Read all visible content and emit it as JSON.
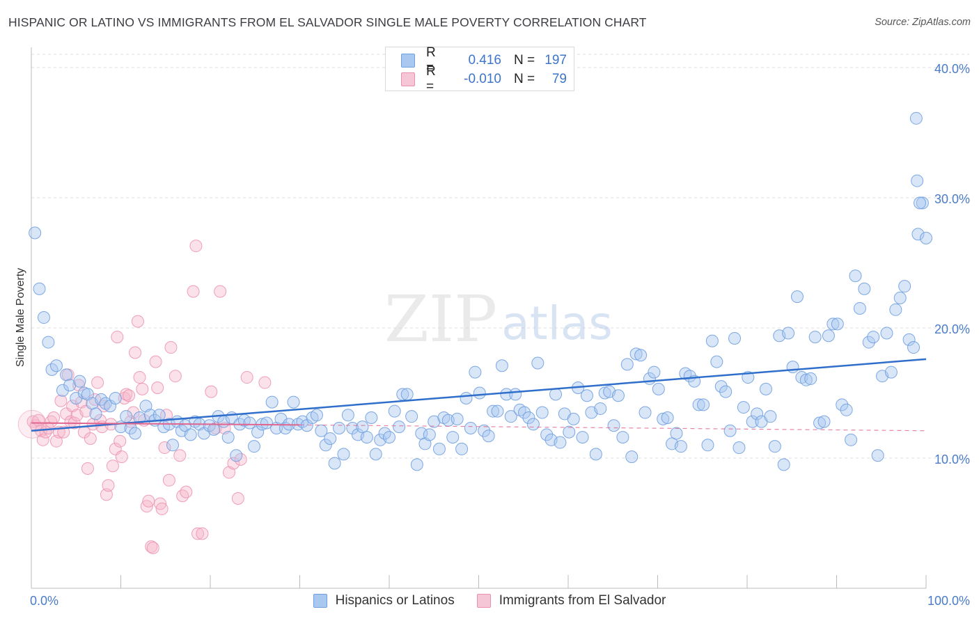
{
  "header": {
    "title": "HISPANIC OR LATINO VS IMMIGRANTS FROM EL SALVADOR SINGLE MALE POVERTY CORRELATION CHART",
    "source": "Source: ZipAtlas.com"
  },
  "watermark": {
    "zip": "ZIP",
    "atlas": "atlas"
  },
  "legend": {
    "rows": [
      {
        "r_label": "R =",
        "r_value": "0.416",
        "n_label": "N =",
        "n_value": "197"
      },
      {
        "r_label": "R =",
        "r_value": "-0.010",
        "n_label": "N =",
        "n_value": "79"
      }
    ]
  },
  "bottom_legend": {
    "series1": "Hispanics or Latinos",
    "series2": "Immigrants from El Salvador"
  },
  "colors": {
    "blue_fill": "#a9c8ef",
    "blue_stroke": "#6f9fe0",
    "blue_line": "#2f6fcb",
    "pink_fill": "#f5b8cb",
    "pink_stroke": "#ec8fae",
    "pink_line": "#e0668f",
    "grid": "#dedede",
    "tick_text": "#4a7cc9"
  },
  "chart_data": {
    "type": "scatter",
    "title": "HISPANIC OR LATINO VS IMMIGRANTS FROM EL SALVADOR SINGLE MALE POVERTY CORRELATION CHART",
    "xlabel": "",
    "ylabel": "Single Male Poverty",
    "xlim": [
      0,
      100
    ],
    "ylim": [
      0,
      40
    ],
    "x_tick_labels": [
      "0.0%",
      "100.0%"
    ],
    "y_ticks": [
      10,
      20,
      30,
      40
    ],
    "y_tick_labels": [
      "10.0%",
      "20.0%",
      "30.0%",
      "40.0%"
    ],
    "grid": "horizontal dashed",
    "legend_position": "top-center",
    "series": [
      {
        "name": "Hispanics or Latinos",
        "r": 0.416,
        "n": 197,
        "trend": {
          "x": [
            0,
            100
          ],
          "y": [
            12.1,
            17.6
          ]
        },
        "points": [
          [
            0.4,
            27.3
          ],
          [
            0.9,
            23.0
          ],
          [
            1.4,
            20.8
          ],
          [
            1.9,
            18.9
          ],
          [
            2.3,
            16.8
          ],
          [
            2.8,
            17.1
          ],
          [
            3.5,
            15.2
          ],
          [
            3.9,
            16.4
          ],
          [
            4.3,
            15.6
          ],
          [
            5.0,
            14.6
          ],
          [
            5.4,
            15.9
          ],
          [
            5.9,
            15.0
          ],
          [
            6.3,
            14.9
          ],
          [
            6.8,
            14.2
          ],
          [
            7.2,
            13.4
          ],
          [
            7.8,
            14.5
          ],
          [
            8.3,
            14.2
          ],
          [
            8.8,
            14.0
          ],
          [
            9.4,
            14.6
          ],
          [
            10.0,
            12.4
          ],
          [
            10.6,
            13.2
          ],
          [
            11.1,
            12.3
          ],
          [
            11.6,
            11.9
          ],
          [
            12.1,
            13.1
          ],
          [
            12.8,
            14.0
          ],
          [
            13.3,
            13.3
          ],
          [
            13.8,
            12.9
          ],
          [
            14.3,
            13.3
          ],
          [
            14.8,
            12.4
          ],
          [
            15.4,
            12.6
          ],
          [
            15.8,
            11.0
          ],
          [
            16.3,
            12.8
          ],
          [
            16.8,
            12.1
          ],
          [
            17.2,
            12.5
          ],
          [
            17.8,
            11.8
          ],
          [
            18.3,
            12.8
          ],
          [
            18.8,
            12.6
          ],
          [
            19.3,
            11.9
          ],
          [
            19.9,
            12.5
          ],
          [
            20.4,
            12.2
          ],
          [
            20.9,
            13.2
          ],
          [
            21.5,
            12.8
          ],
          [
            22.0,
            11.6
          ],
          [
            22.4,
            13.1
          ],
          [
            22.9,
            10.2
          ],
          [
            23.3,
            12.6
          ],
          [
            23.8,
            12.9
          ],
          [
            24.4,
            12.7
          ],
          [
            24.9,
            10.9
          ],
          [
            25.3,
            12.0
          ],
          [
            25.8,
            12.6
          ],
          [
            26.3,
            12.7
          ],
          [
            26.9,
            14.3
          ],
          [
            27.4,
            12.3
          ],
          [
            27.9,
            13.0
          ],
          [
            28.4,
            12.3
          ],
          [
            28.8,
            12.6
          ],
          [
            29.3,
            14.3
          ],
          [
            29.8,
            12.6
          ],
          [
            30.3,
            12.8
          ],
          [
            30.8,
            12.5
          ],
          [
            31.4,
            13.1
          ],
          [
            31.9,
            13.3
          ],
          [
            32.4,
            12.1
          ],
          [
            32.9,
            11.0
          ],
          [
            33.4,
            11.5
          ],
          [
            33.9,
            9.6
          ],
          [
            34.4,
            12.3
          ],
          [
            34.9,
            10.3
          ],
          [
            35.4,
            13.3
          ],
          [
            35.9,
            12.3
          ],
          [
            36.5,
            11.8
          ],
          [
            37.0,
            12.4
          ],
          [
            37.5,
            11.6
          ],
          [
            38.0,
            13.1
          ],
          [
            38.5,
            10.3
          ],
          [
            39.0,
            11.4
          ],
          [
            39.5,
            11.9
          ],
          [
            40.0,
            11.6
          ],
          [
            40.6,
            13.6
          ],
          [
            41.1,
            12.4
          ],
          [
            41.5,
            14.9
          ],
          [
            42.0,
            14.9
          ],
          [
            42.5,
            13.2
          ],
          [
            43.1,
            9.5
          ],
          [
            43.6,
            11.9
          ],
          [
            44.0,
            11.1
          ],
          [
            44.5,
            11.8
          ],
          [
            45.0,
            12.8
          ],
          [
            45.6,
            10.7
          ],
          [
            46.1,
            13.1
          ],
          [
            46.6,
            12.9
          ],
          [
            47.1,
            11.6
          ],
          [
            47.6,
            13.0
          ],
          [
            48.1,
            10.7
          ],
          [
            48.6,
            14.6
          ],
          [
            49.1,
            12.3
          ],
          [
            49.6,
            16.6
          ],
          [
            50.1,
            15.0
          ],
          [
            50.6,
            12.1
          ],
          [
            51.1,
            11.7
          ],
          [
            51.6,
            13.6
          ],
          [
            52.1,
            13.6
          ],
          [
            52.6,
            17.1
          ],
          [
            53.1,
            14.9
          ],
          [
            53.6,
            13.2
          ],
          [
            54.1,
            14.9
          ],
          [
            54.6,
            13.7
          ],
          [
            55.1,
            13.5
          ],
          [
            55.6,
            13.1
          ],
          [
            56.1,
            12.6
          ],
          [
            56.6,
            17.3
          ],
          [
            57.1,
            13.5
          ],
          [
            57.6,
            11.8
          ],
          [
            58.1,
            11.4
          ],
          [
            58.6,
            14.9
          ],
          [
            59.1,
            11.2
          ],
          [
            59.6,
            13.4
          ],
          [
            60.1,
            12.0
          ],
          [
            60.6,
            13.0
          ],
          [
            61.1,
            15.4
          ],
          [
            61.6,
            11.6
          ],
          [
            62.1,
            14.8
          ],
          [
            62.6,
            13.5
          ],
          [
            63.1,
            10.3
          ],
          [
            63.6,
            13.8
          ],
          [
            64.1,
            15.0
          ],
          [
            64.6,
            15.1
          ],
          [
            65.1,
            12.5
          ],
          [
            65.6,
            14.8
          ],
          [
            66.1,
            11.6
          ],
          [
            66.6,
            17.2
          ],
          [
            67.1,
            10.1
          ],
          [
            67.6,
            18.0
          ],
          [
            68.1,
            17.9
          ],
          [
            68.6,
            13.5
          ],
          [
            69.1,
            16.1
          ],
          [
            69.6,
            16.6
          ],
          [
            70.1,
            15.3
          ],
          [
            70.6,
            13.0
          ],
          [
            71.1,
            13.1
          ],
          [
            71.6,
            11.1
          ],
          [
            72.1,
            11.9
          ],
          [
            72.6,
            10.9
          ],
          [
            73.1,
            16.5
          ],
          [
            73.6,
            16.3
          ],
          [
            74.1,
            15.9
          ],
          [
            74.6,
            14.1
          ],
          [
            75.1,
            14.1
          ],
          [
            75.6,
            11.0
          ],
          [
            76.1,
            19.0
          ],
          [
            76.6,
            17.4
          ],
          [
            77.1,
            15.5
          ],
          [
            77.6,
            15.1
          ],
          [
            78.1,
            12.1
          ],
          [
            78.6,
            19.2
          ],
          [
            79.1,
            10.8
          ],
          [
            79.6,
            13.9
          ],
          [
            80.1,
            16.2
          ],
          [
            80.6,
            12.8
          ],
          [
            81.1,
            13.4
          ],
          [
            81.6,
            12.8
          ],
          [
            82.1,
            15.3
          ],
          [
            82.6,
            13.2
          ],
          [
            83.1,
            10.9
          ],
          [
            83.6,
            19.4
          ],
          [
            84.1,
            9.5
          ],
          [
            84.6,
            19.6
          ],
          [
            85.1,
            17.0
          ],
          [
            85.6,
            22.4
          ],
          [
            86.1,
            16.2
          ],
          [
            86.6,
            16.0
          ],
          [
            87.1,
            16.1
          ],
          [
            87.6,
            19.3
          ],
          [
            88.1,
            12.7
          ],
          [
            88.6,
            12.8
          ],
          [
            89.1,
            19.4
          ],
          [
            89.6,
            20.3
          ],
          [
            90.1,
            20.3
          ],
          [
            90.6,
            14.1
          ],
          [
            91.1,
            13.7
          ],
          [
            91.6,
            11.4
          ],
          [
            92.1,
            24.0
          ],
          [
            92.6,
            21.5
          ],
          [
            93.1,
            23.0
          ],
          [
            93.6,
            18.9
          ],
          [
            94.1,
            19.3
          ],
          [
            94.6,
            10.2
          ],
          [
            95.1,
            16.3
          ],
          [
            95.6,
            19.6
          ],
          [
            96.1,
            16.6
          ],
          [
            96.6,
            21.4
          ],
          [
            97.1,
            22.3
          ],
          [
            97.6,
            23.2
          ],
          [
            98.1,
            19.1
          ],
          [
            98.6,
            18.5
          ],
          [
            99.1,
            27.2
          ],
          [
            99.6,
            29.6
          ],
          [
            100.0,
            26.9
          ],
          [
            99.0,
            31.3
          ],
          [
            98.9,
            36.1
          ],
          [
            99.3,
            29.6
          ]
        ]
      },
      {
        "name": "Immigrants from El Salvador",
        "r": -0.01,
        "n": 79,
        "trend": {
          "x": [
            0,
            30
          ],
          "y": [
            12.7,
            12.55
          ]
        },
        "trend_extended": {
          "x": [
            30,
            100
          ],
          "y": [
            12.55,
            12.1
          ]
        },
        "points": [
          [
            0.2,
            12.8
          ],
          [
            0.5,
            12.5
          ],
          [
            0.8,
            12.9
          ],
          [
            1.1,
            12.1
          ],
          [
            1.3,
            11.4
          ],
          [
            1.6,
            12.0
          ],
          [
            1.9,
            12.3
          ],
          [
            2.2,
            12.8
          ],
          [
            2.5,
            13.1
          ],
          [
            2.8,
            11.3
          ],
          [
            3.1,
            12.0
          ],
          [
            3.3,
            14.4
          ],
          [
            3.6,
            12.0
          ],
          [
            3.9,
            13.4
          ],
          [
            4.1,
            16.4
          ],
          [
            4.4,
            12.8
          ],
          [
            4.6,
            14.0
          ],
          [
            4.8,
            12.7
          ],
          [
            5.1,
            13.3
          ],
          [
            5.3,
            15.6
          ],
          [
            5.6,
            14.3
          ],
          [
            5.9,
            12.0
          ],
          [
            6.1,
            13.6
          ],
          [
            6.3,
            9.2
          ],
          [
            6.6,
            11.5
          ],
          [
            6.9,
            12.6
          ],
          [
            7.1,
            14.5
          ],
          [
            7.4,
            15.8
          ],
          [
            7.7,
            12.9
          ],
          [
            7.9,
            12.4
          ],
          [
            8.1,
            14.0
          ],
          [
            8.4,
            7.2
          ],
          [
            8.6,
            7.9
          ],
          [
            8.9,
            12.6
          ],
          [
            9.1,
            9.4
          ],
          [
            9.4,
            10.7
          ],
          [
            9.6,
            19.3
          ],
          [
            9.9,
            11.3
          ],
          [
            10.1,
            10.1
          ],
          [
            10.4,
            14.6
          ],
          [
            10.6,
            14.9
          ],
          [
            10.9,
            14.8
          ],
          [
            11.1,
            12.8
          ],
          [
            11.4,
            13.5
          ],
          [
            11.6,
            18.1
          ],
          [
            11.9,
            20.5
          ],
          [
            12.1,
            16.2
          ],
          [
            12.4,
            15.3
          ],
          [
            12.6,
            12.9
          ],
          [
            12.9,
            6.3
          ],
          [
            13.1,
            6.7
          ],
          [
            13.4,
            3.2
          ],
          [
            13.6,
            3.1
          ],
          [
            13.9,
            17.4
          ],
          [
            14.1,
            15.4
          ],
          [
            14.4,
            6.5
          ],
          [
            14.6,
            6.1
          ],
          [
            14.9,
            10.8
          ],
          [
            15.1,
            13.3
          ],
          [
            15.4,
            8.3
          ],
          [
            15.6,
            18.5
          ],
          [
            16.1,
            16.3
          ],
          [
            16.6,
            10.2
          ],
          [
            16.9,
            7.1
          ],
          [
            17.3,
            7.4
          ],
          [
            18.1,
            22.8
          ],
          [
            18.4,
            26.3
          ],
          [
            18.6,
            4.2
          ],
          [
            19.1,
            4.2
          ],
          [
            20.1,
            15.1
          ],
          [
            20.6,
            12.3
          ],
          [
            21.1,
            22.8
          ],
          [
            21.6,
            12.3
          ],
          [
            22.1,
            8.9
          ],
          [
            22.6,
            9.6
          ],
          [
            23.1,
            6.9
          ],
          [
            23.4,
            9.9
          ],
          [
            24.1,
            16.2
          ],
          [
            26.1,
            15.8
          ]
        ]
      }
    ]
  }
}
